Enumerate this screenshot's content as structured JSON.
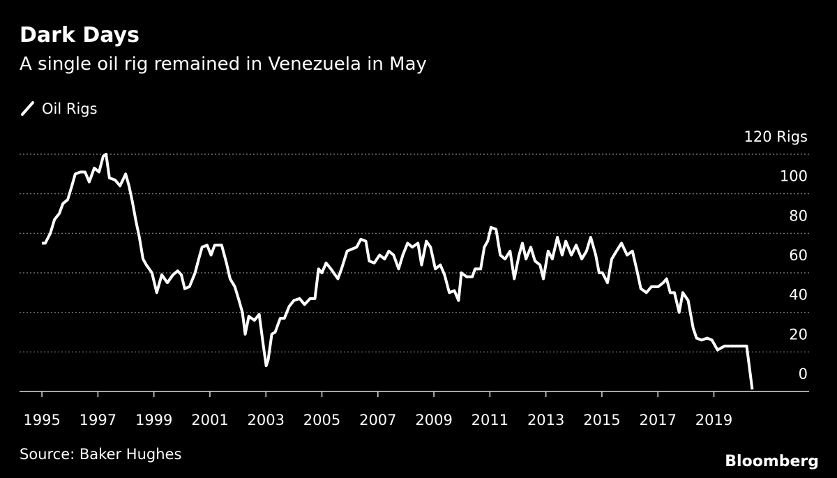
{
  "chart_data": {
    "type": "line",
    "title": "Dark Days",
    "subtitle": "A single oil rig remained in Venezuela in May",
    "source": "Source: Baker Hughes",
    "brand": "Bloomberg",
    "xlim": [
      1994.2,
      2022.4
    ],
    "xticks": [
      1995,
      1997,
      1999,
      2001,
      2003,
      2005,
      2007,
      2009,
      2011,
      2013,
      2015,
      2017,
      2019
    ],
    "ylim": [
      0,
      120
    ],
    "yticks": [
      0,
      20,
      40,
      60,
      80,
      100,
      {
        "value": 120,
        "label": "120 Rigs"
      }
    ],
    "grid": true,
    "x": [
      1995.0,
      1995.12,
      1995.3,
      1995.45,
      1995.62,
      1995.75,
      1995.92,
      1996.07,
      1996.19,
      1996.37,
      1996.54,
      1996.69,
      1996.87,
      1997.04,
      1997.19,
      1997.29,
      1997.41,
      1997.61,
      1997.79,
      1997.99,
      1998.11,
      1998.23,
      1998.36,
      1998.48,
      1998.61,
      1998.73,
      1998.93,
      1999.1,
      1999.28,
      1999.48,
      1999.68,
      1999.85,
      1999.98,
      2000.1,
      2000.27,
      2000.47,
      2000.6,
      2000.72,
      2000.9,
      2001.04,
      2001.17,
      2001.42,
      2001.59,
      2001.72,
      2001.89,
      2002.04,
      2002.16,
      2002.26,
      2002.39,
      2002.59,
      2002.76,
      2002.91,
      2003.01,
      2003.08,
      2003.21,
      2003.33,
      2003.51,
      2003.66,
      2003.83,
      2004.0,
      2004.2,
      2004.38,
      2004.58,
      2004.75,
      2004.88,
      2005.0,
      2005.15,
      2005.32,
      2005.57,
      2005.7,
      2005.9,
      2006.07,
      2006.24,
      2006.39,
      2006.57,
      2006.69,
      2006.87,
      2007.06,
      2007.24,
      2007.39,
      2007.56,
      2007.74,
      2007.89,
      2008.06,
      2008.23,
      2008.43,
      2008.56,
      2008.73,
      2008.88,
      2009.05,
      2009.23,
      2009.38,
      2009.55,
      2009.73,
      2009.88,
      2009.98,
      2010.17,
      2010.37,
      2010.47,
      2010.67,
      2010.8,
      2010.92,
      2011.04,
      2011.22,
      2011.37,
      2011.54,
      2011.72,
      2011.87,
      2012.04,
      2012.16,
      2012.29,
      2012.46,
      2012.61,
      2012.79,
      2012.91,
      2013.08,
      2013.23,
      2013.41,
      2013.58,
      2013.71,
      2013.91,
      2014.08,
      2014.28,
      2014.45,
      2014.6,
      2014.78,
      2014.9,
      2015.02,
      2015.2,
      2015.35,
      2015.52,
      2015.7,
      2015.9,
      2016.09,
      2016.27,
      2016.39,
      2016.59,
      2016.77,
      2017.01,
      2017.19,
      2017.31,
      2017.44,
      2017.59,
      2017.76,
      2017.89,
      2018.08,
      2018.26,
      2018.38,
      2018.56,
      2018.76,
      2018.93,
      2019.13,
      2019.38,
      2019.63,
      2020.17,
      2020.37
    ],
    "series": [
      {
        "name": "Oil Rigs",
        "color": "#ffffff",
        "values": [
          75,
          75,
          80,
          87,
          90,
          95,
          97,
          104,
          110,
          111,
          111,
          106,
          113,
          111,
          119,
          120,
          108,
          107,
          104,
          110,
          104,
          96,
          86,
          78,
          67,
          64,
          60,
          50,
          59,
          55,
          59,
          61,
          59,
          52,
          53,
          60,
          67,
          73,
          74,
          69,
          74,
          74,
          65,
          57,
          53,
          46,
          40,
          29,
          38,
          36,
          39,
          23,
          13,
          16,
          29,
          30,
          37,
          37,
          43,
          46,
          47,
          44,
          47,
          47,
          62,
          60,
          65,
          62,
          57,
          62,
          71,
          72,
          73,
          77,
          76,
          66,
          65,
          69,
          67,
          71,
          69,
          62,
          69,
          75,
          73,
          75,
          64,
          76,
          73,
          62,
          64,
          59,
          50,
          51,
          46,
          60,
          58,
          58,
          62,
          62,
          73,
          76,
          83,
          82,
          69,
          67,
          71,
          57,
          69,
          75,
          67,
          73,
          66,
          64,
          57,
          71,
          67,
          78,
          69,
          76,
          69,
          74,
          67,
          71,
          78,
          69,
          60,
          60,
          55,
          67,
          71,
          75,
          69,
          71,
          60,
          52,
          50,
          53,
          53,
          55,
          57,
          50,
          50,
          40,
          50,
          46,
          32,
          27,
          26,
          27,
          26,
          21,
          23,
          23,
          23,
          1
        ]
      }
    ]
  }
}
